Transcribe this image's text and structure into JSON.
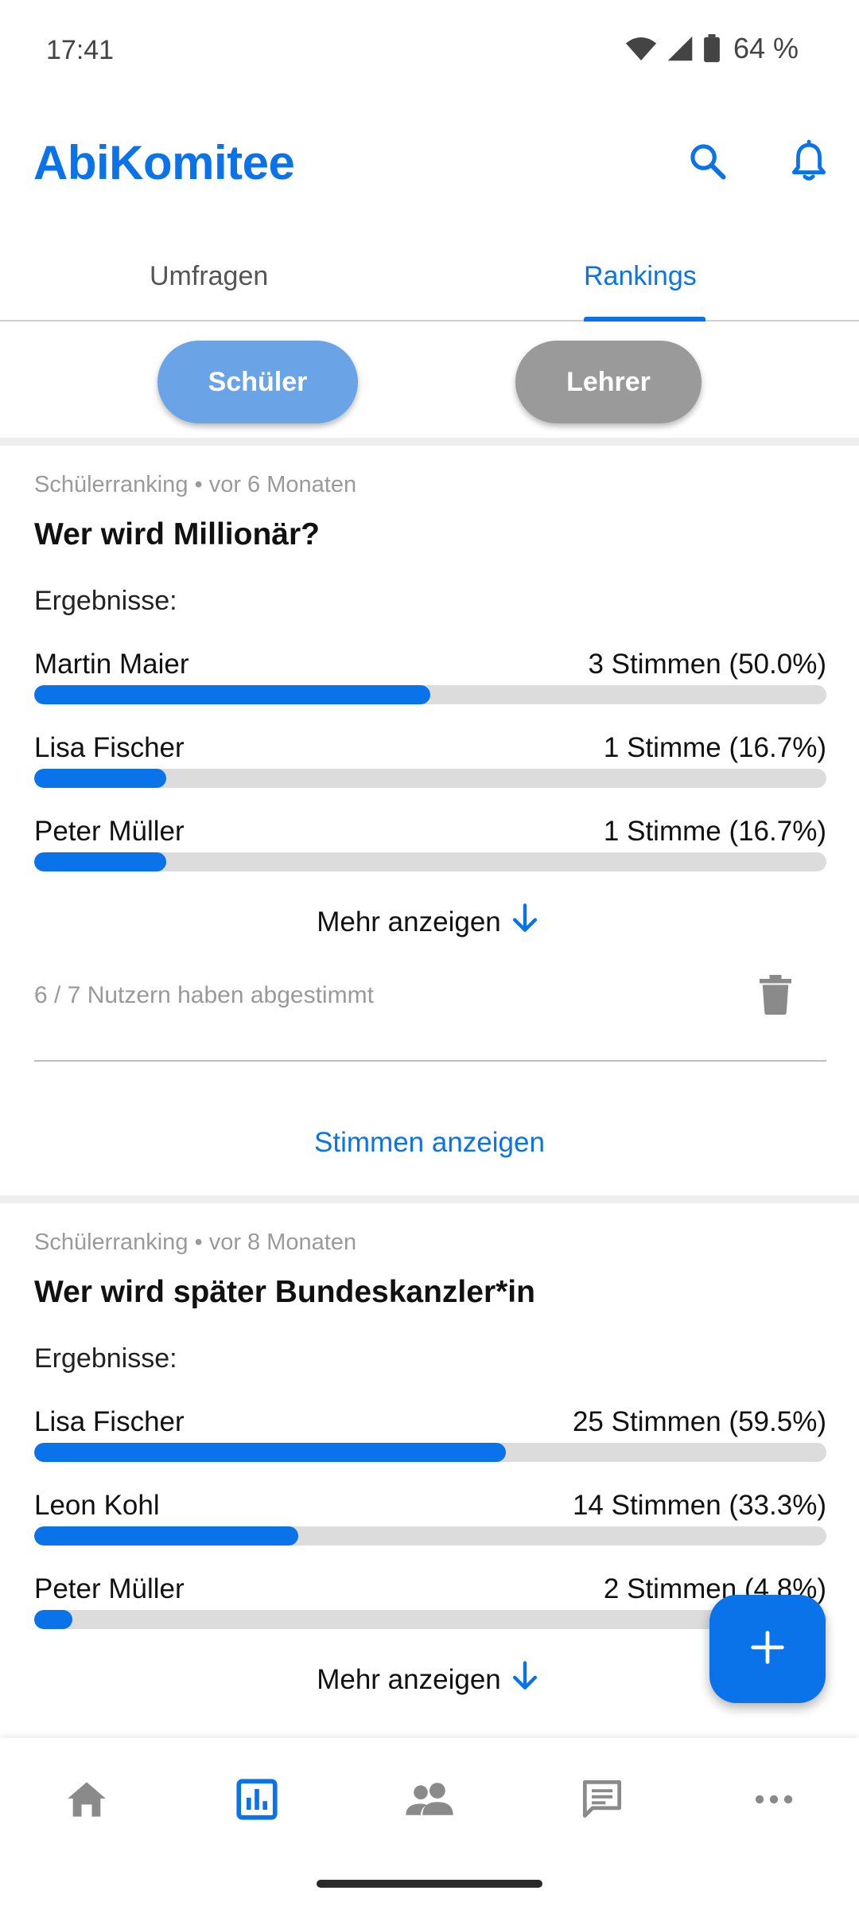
{
  "status_bar": {
    "time": "17:41",
    "battery_percent": "64 %"
  },
  "app": {
    "title": "AbiKomitee",
    "accent_color": "#0a73ea"
  },
  "tabs": [
    {
      "label": "Umfragen",
      "active": false
    },
    {
      "label": "Rankings",
      "active": true
    }
  ],
  "toggle": {
    "schueler": "Schüler",
    "lehrer": "Lehrer",
    "selected": "Schüler"
  },
  "rankings": [
    {
      "meta": "Schülerranking • vor 6 Monaten",
      "title": "Wer wird Millionär?",
      "results_label": "Ergebnisse:",
      "results": [
        {
          "name": "Martin Maier",
          "votes": "3 Stimmen (50.0%)",
          "share": 0.5
        },
        {
          "name": "Lisa Fischer",
          "votes": "1 Stimme (16.7%)",
          "share": 0.167
        },
        {
          "name": "Peter Müller",
          "votes": "1 Stimme (16.7%)",
          "share": 0.167
        }
      ],
      "more_label": "Mehr anzeigen",
      "voted_info": "6 / 7 Nutzern haben abgestimmt",
      "show_votes_label": "Stimmen anzeigen"
    },
    {
      "meta": "Schülerranking • vor 8 Monaten",
      "title": "Wer wird später Bundeskanzler*in",
      "results_label": "Ergebnisse:",
      "results": [
        {
          "name": "Lisa Fischer",
          "votes": "25 Stimmen (59.5%)",
          "share": 0.595
        },
        {
          "name": "Leon Kohl",
          "votes": "14 Stimmen (33.3%)",
          "share": 0.333
        },
        {
          "name": "Peter Müller",
          "votes": "2 Stimmen (4.8%)",
          "share": 0.048
        }
      ],
      "more_label": "Mehr anzeigen"
    }
  ],
  "fab": {
    "icon": "plus-icon"
  },
  "bottom_nav": [
    {
      "icon": "home-icon",
      "active": false
    },
    {
      "icon": "chart-icon",
      "active": true
    },
    {
      "icon": "people-icon",
      "active": false
    },
    {
      "icon": "chat-icon",
      "active": false
    },
    {
      "icon": "more-horiz-icon",
      "active": false
    }
  ]
}
